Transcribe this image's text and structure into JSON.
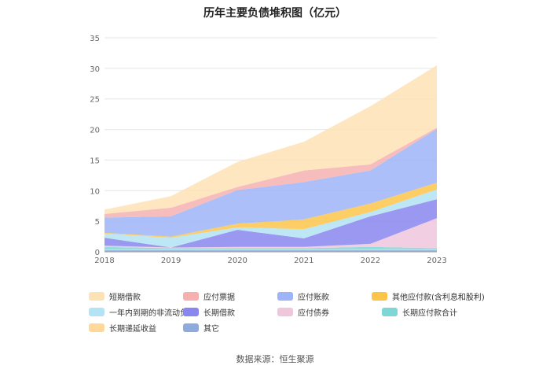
{
  "chart_data": {
    "type": "area",
    "stacked": true,
    "title": "历年主要负债堆积图（亿元）",
    "categories": [
      "2018",
      "2019",
      "2020",
      "2021",
      "2022",
      "2023"
    ],
    "ylim": [
      0,
      35
    ],
    "yticks": [
      0,
      5,
      10,
      15,
      20,
      25,
      30,
      35
    ],
    "series": [
      {
        "name": "其它",
        "color": "#8faadc",
        "values": [
          0.3,
          0.3,
          0.3,
          0.3,
          0.3,
          0.3
        ]
      },
      {
        "name": "长期递延收益",
        "color": "#ffd89a",
        "values": [
          0.1,
          0.1,
          0.1,
          0.1,
          0.1,
          0.1
        ]
      },
      {
        "name": "长期应付款合计",
        "color": "#7ed6d6",
        "values": [
          0.4,
          0.2,
          0.2,
          0.2,
          0.4,
          0.2
        ]
      },
      {
        "name": "应付债券",
        "color": "#efc6dc",
        "values": [
          0.2,
          0.1,
          0.2,
          0.2,
          0.5,
          4.9
        ]
      },
      {
        "name": "长期借款",
        "color": "#8a86f0",
        "values": [
          1.3,
          0.0,
          2.8,
          1.4,
          4.5,
          3.1
        ]
      },
      {
        "name": "一年内到期的非流动负债",
        "color": "#b3e3f5",
        "values": [
          0.7,
          1.6,
          0.4,
          1.5,
          0.7,
          1.6
        ]
      },
      {
        "name": "其他应付款(含利息和股利)",
        "color": "#fcc54a",
        "values": [
          0.1,
          0.2,
          0.6,
          1.6,
          1.4,
          1.1
        ]
      },
      {
        "name": "应付账款",
        "color": "#9db4f8",
        "values": [
          2.5,
          3.3,
          5.5,
          6.1,
          5.4,
          8.8
        ]
      },
      {
        "name": "应付票据",
        "color": "#f6b0b0",
        "values": [
          0.6,
          1.4,
          0.5,
          1.9,
          1.0,
          0.2
        ]
      },
      {
        "name": "短期借款",
        "color": "#fde2b5",
        "values": [
          0.7,
          1.9,
          4.1,
          4.7,
          9.5,
          10.2
        ]
      }
    ]
  },
  "legend": [
    {
      "label": "短期借款",
      "color": "#fde2b5"
    },
    {
      "label": "应付票据",
      "color": "#f6b0b0"
    },
    {
      "label": "应付账款",
      "color": "#9db4f8"
    },
    {
      "label": "其他应付款(含利息和股利)",
      "color": "#fcc54a"
    },
    {
      "label": "一年内到期的非流动负债",
      "color": "#b3e3f5"
    },
    {
      "label": "长期借款",
      "color": "#8a86f0"
    },
    {
      "label": "应付债券",
      "color": "#efc6dc"
    },
    {
      "label": "长期应付款合计",
      "color": "#7ed6d6"
    },
    {
      "label": "长期递延收益",
      "color": "#ffd89a"
    },
    {
      "label": "其它",
      "color": "#8faadc"
    }
  ],
  "source": "数据来源：恒生聚源"
}
